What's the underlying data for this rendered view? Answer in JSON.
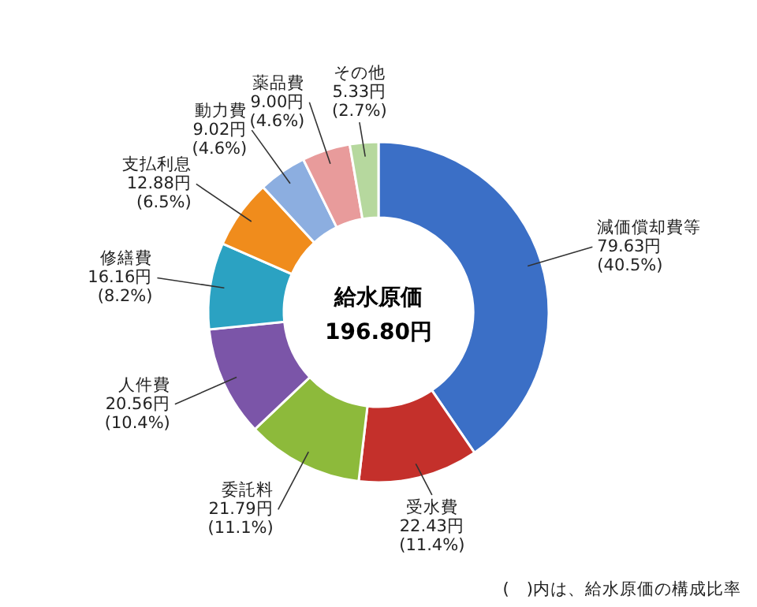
{
  "chart_data": {
    "type": "donut",
    "title": "給水原価",
    "subtitle": "196.80円",
    "categories": [
      "減価償却費等",
      "受水費",
      "委託料",
      "人件費",
      "修繕費",
      "支払利息",
      "動力費",
      "薬品費",
      "その他"
    ],
    "values": [
      79.63,
      22.43,
      21.79,
      20.56,
      16.16,
      12.88,
      9.02,
      9.0,
      5.33
    ],
    "value_labels": [
      "79.63円 (40.5%)",
      "22.43円 (11.4%)",
      "21.79円 (11.1%)",
      "20.56円 (10.4%)",
      "16.16円 (8.2%)",
      "12.88円 (6.5%)",
      "9.02円 (4.6%)",
      "9.00円 (4.6%)",
      "5.33円 (2.7%)"
    ],
    "colors": [
      "#3b6fc6",
      "#c4302b",
      "#8dba3b",
      "#7b55a8",
      "#2ba2c2",
      "#f08c1c",
      "#8caee0",
      "#e89b9b",
      "#b6d89e"
    ],
    "annotations": [
      "(　)内は、給水原価の構成比率"
    ]
  }
}
